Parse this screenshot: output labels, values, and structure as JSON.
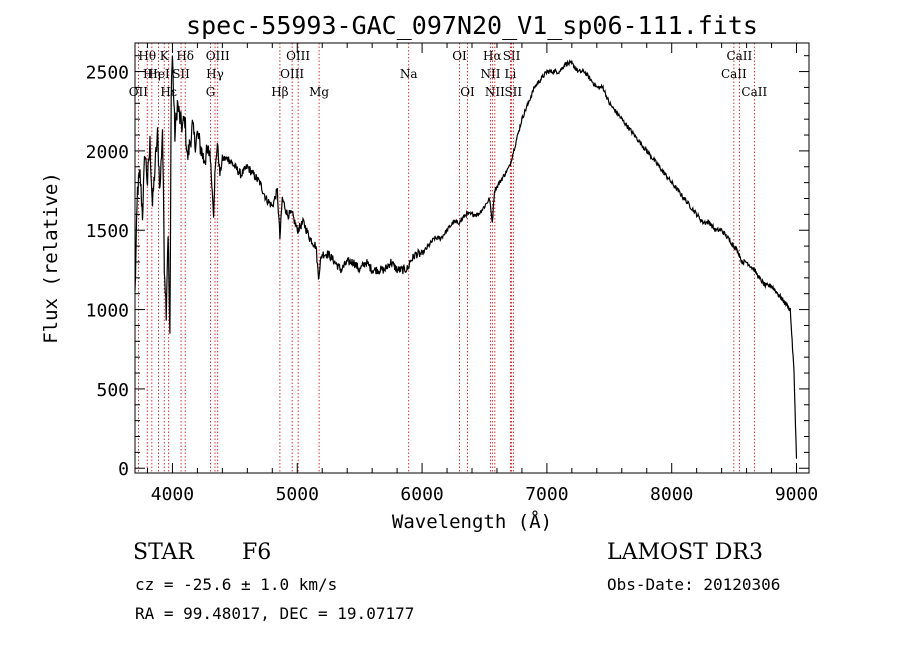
{
  "chart_data": {
    "type": "line",
    "title": "spec-55993-GAC_097N20_V1_sp06-111.fits",
    "xlabel": "Wavelength (Å)",
    "ylabel": "Flux (relative)",
    "xlim": [
      3700,
      9100
    ],
    "ylim": [
      -30,
      2680
    ],
    "xticks": [
      4000,
      5000,
      6000,
      7000,
      8000,
      9000
    ],
    "yticks": [
      0,
      500,
      1000,
      1500,
      2000,
      2500
    ],
    "series": [
      {
        "name": "flux",
        "x": [
          3700,
          3720,
          3740,
          3760,
          3780,
          3800,
          3820,
          3840,
          3860,
          3880,
          3900,
          3920,
          3935,
          3950,
          3965,
          3980,
          3990,
          4000,
          4020,
          4040,
          4060,
          4080,
          4100,
          4120,
          4140,
          4160,
          4180,
          4200,
          4250,
          4300,
          4330,
          4340,
          4360,
          4380,
          4400,
          4450,
          4500,
          4550,
          4600,
          4650,
          4700,
          4750,
          4800,
          4840,
          4861,
          4880,
          4920,
          4960,
          5000,
          5050,
          5100,
          5150,
          5170,
          5185,
          5200,
          5250,
          5300,
          5350,
          5400,
          5450,
          5500,
          5550,
          5600,
          5650,
          5700,
          5750,
          5800,
          5850,
          5890,
          5900,
          5950,
          6000,
          6050,
          6100,
          6150,
          6200,
          6250,
          6300,
          6350,
          6400,
          6450,
          6500,
          6540,
          6563,
          6580,
          6620,
          6660,
          6700,
          6750,
          6800,
          6850,
          6900,
          6950,
          7000,
          7050,
          7100,
          7150,
          7200,
          7250,
          7300,
          7350,
          7400,
          7450,
          7500,
          7550,
          7600,
          7650,
          7700,
          7750,
          7800,
          7850,
          7900,
          7950,
          8000,
          8050,
          8100,
          8150,
          8200,
          8250,
          8300,
          8350,
          8400,
          8450,
          8500,
          8542,
          8560,
          8600,
          8662,
          8700,
          8750,
          8800,
          8850,
          8900,
          8950,
          8980,
          9000
        ],
        "values": [
          1100,
          1750,
          1850,
          1600,
          2000,
          1800,
          2050,
          1650,
          1900,
          2100,
          1750,
          2150,
          1300,
          1000,
          1500,
          800,
          2400,
          2600,
          2100,
          2300,
          2200,
          2150,
          2200,
          1950,
          2050,
          2150,
          2050,
          2100,
          1950,
          2000,
          1600,
          1850,
          2050,
          1850,
          1950,
          1950,
          1900,
          1850,
          1900,
          1850,
          1800,
          1700,
          1650,
          1750,
          1450,
          1700,
          1600,
          1600,
          1500,
          1550,
          1450,
          1400,
          1200,
          1300,
          1350,
          1350,
          1300,
          1250,
          1300,
          1300,
          1250,
          1300,
          1250,
          1250,
          1250,
          1300,
          1250,
          1250,
          1260,
          1300,
          1350,
          1350,
          1400,
          1450,
          1450,
          1500,
          1550,
          1550,
          1600,
          1600,
          1600,
          1650,
          1700,
          1550,
          1750,
          1800,
          1850,
          1900,
          2050,
          2200,
          2300,
          2400,
          2450,
          2500,
          2500,
          2500,
          2550,
          2550,
          2500,
          2500,
          2450,
          2400,
          2400,
          2300,
          2250,
          2200,
          2150,
          2100,
          2050,
          2000,
          1950,
          1900,
          1850,
          1800,
          1750,
          1700,
          1650,
          1600,
          1550,
          1550,
          1500,
          1500,
          1450,
          1400,
          1350,
          1300,
          1300,
          1250,
          1200,
          1150,
          1150,
          1100,
          1050,
          1000,
          600,
          60
        ]
      }
    ],
    "lines": [
      {
        "label": "Hθ",
        "x": 3798,
        "row": 0
      },
      {
        "label": "OII",
        "x": 3727,
        "row": 2
      },
      {
        "label": "Hη",
        "x": 3835,
        "row": 1
      },
      {
        "label": "HeI",
        "x": 3889,
        "row": 1
      },
      {
        "label": "K",
        "x": 3934,
        "row": 0
      },
      {
        "label": "Hε",
        "x": 3970,
        "row": 2
      },
      {
        "label": "SII",
        "x": 4069,
        "row": 1
      },
      {
        "label": "Hδ",
        "x": 4102,
        "row": 0
      },
      {
        "label": "OIII",
        "x": 4363,
        "row": 0
      },
      {
        "label": "Hγ",
        "x": 4341,
        "row": 1
      },
      {
        "label": "G",
        "x": 4305,
        "row": 2
      },
      {
        "label": "Hβ",
        "x": 4861,
        "row": 2
      },
      {
        "label": "OIII",
        "x": 5007,
        "row": 0
      },
      {
        "label": "OIII",
        "x": 4959,
        "row": 1
      },
      {
        "label": "Mg",
        "x": 5175,
        "row": 2
      },
      {
        "label": "Na",
        "x": 5893,
        "row": 1
      },
      {
        "label": "OI",
        "x": 6300,
        "row": 0
      },
      {
        "label": "OI",
        "x": 6364,
        "row": 2
      },
      {
        "label": "Hα",
        "x": 6563,
        "row": 0
      },
      {
        "label": "NII",
        "x": 6548,
        "row": 1
      },
      {
        "label": "NII",
        "x": 6583,
        "row": 2
      },
      {
        "label": "SII",
        "x": 6717,
        "row": 0
      },
      {
        "label": "Li",
        "x": 6708,
        "row": 1
      },
      {
        "label": "SII",
        "x": 6731,
        "row": 2
      },
      {
        "label": "CaII",
        "x": 8498,
        "row": 1
      },
      {
        "label": "CaII",
        "x": 8542,
        "row": 0
      },
      {
        "label": "CaII",
        "x": 8662,
        "row": 2
      }
    ]
  },
  "info": {
    "class": "STAR",
    "subclass": "F6",
    "cz": "cz = -25.6 ± 1.0 km/s",
    "radec": "RA =  99.48017, DEC =  19.07177",
    "survey": "LAMOST DR3",
    "obsdate": "Obs-Date: 20120306"
  },
  "colors": {
    "line_marker": "#cc0000",
    "spectrum": "#000000"
  }
}
